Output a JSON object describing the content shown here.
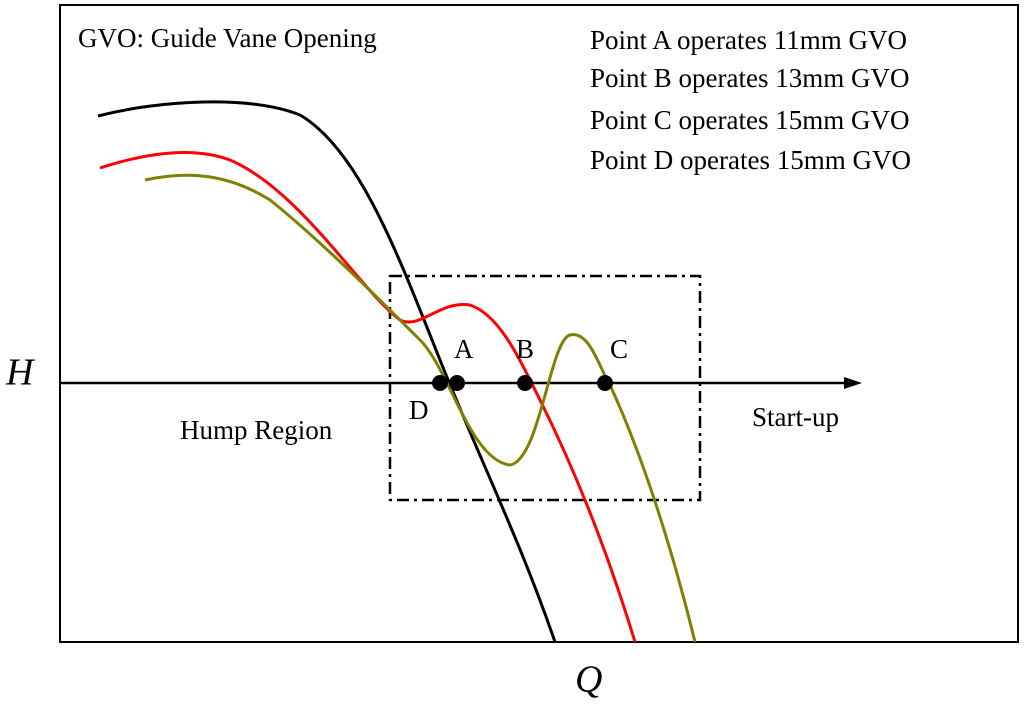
{
  "note": "GVO: Guide Vane Opening",
  "legend": [
    "Point A operates 11mm GVO",
    "Point B operates 13mm GVO",
    "Point C operates 15mm GVO",
    "Point D operates 15mm GVO"
  ],
  "axes": {
    "y": "H",
    "x": "Q"
  },
  "labels": {
    "region": "Hump Region",
    "arrow": "Start-up"
  },
  "points": [
    "A",
    "B",
    "C",
    "D"
  ]
}
